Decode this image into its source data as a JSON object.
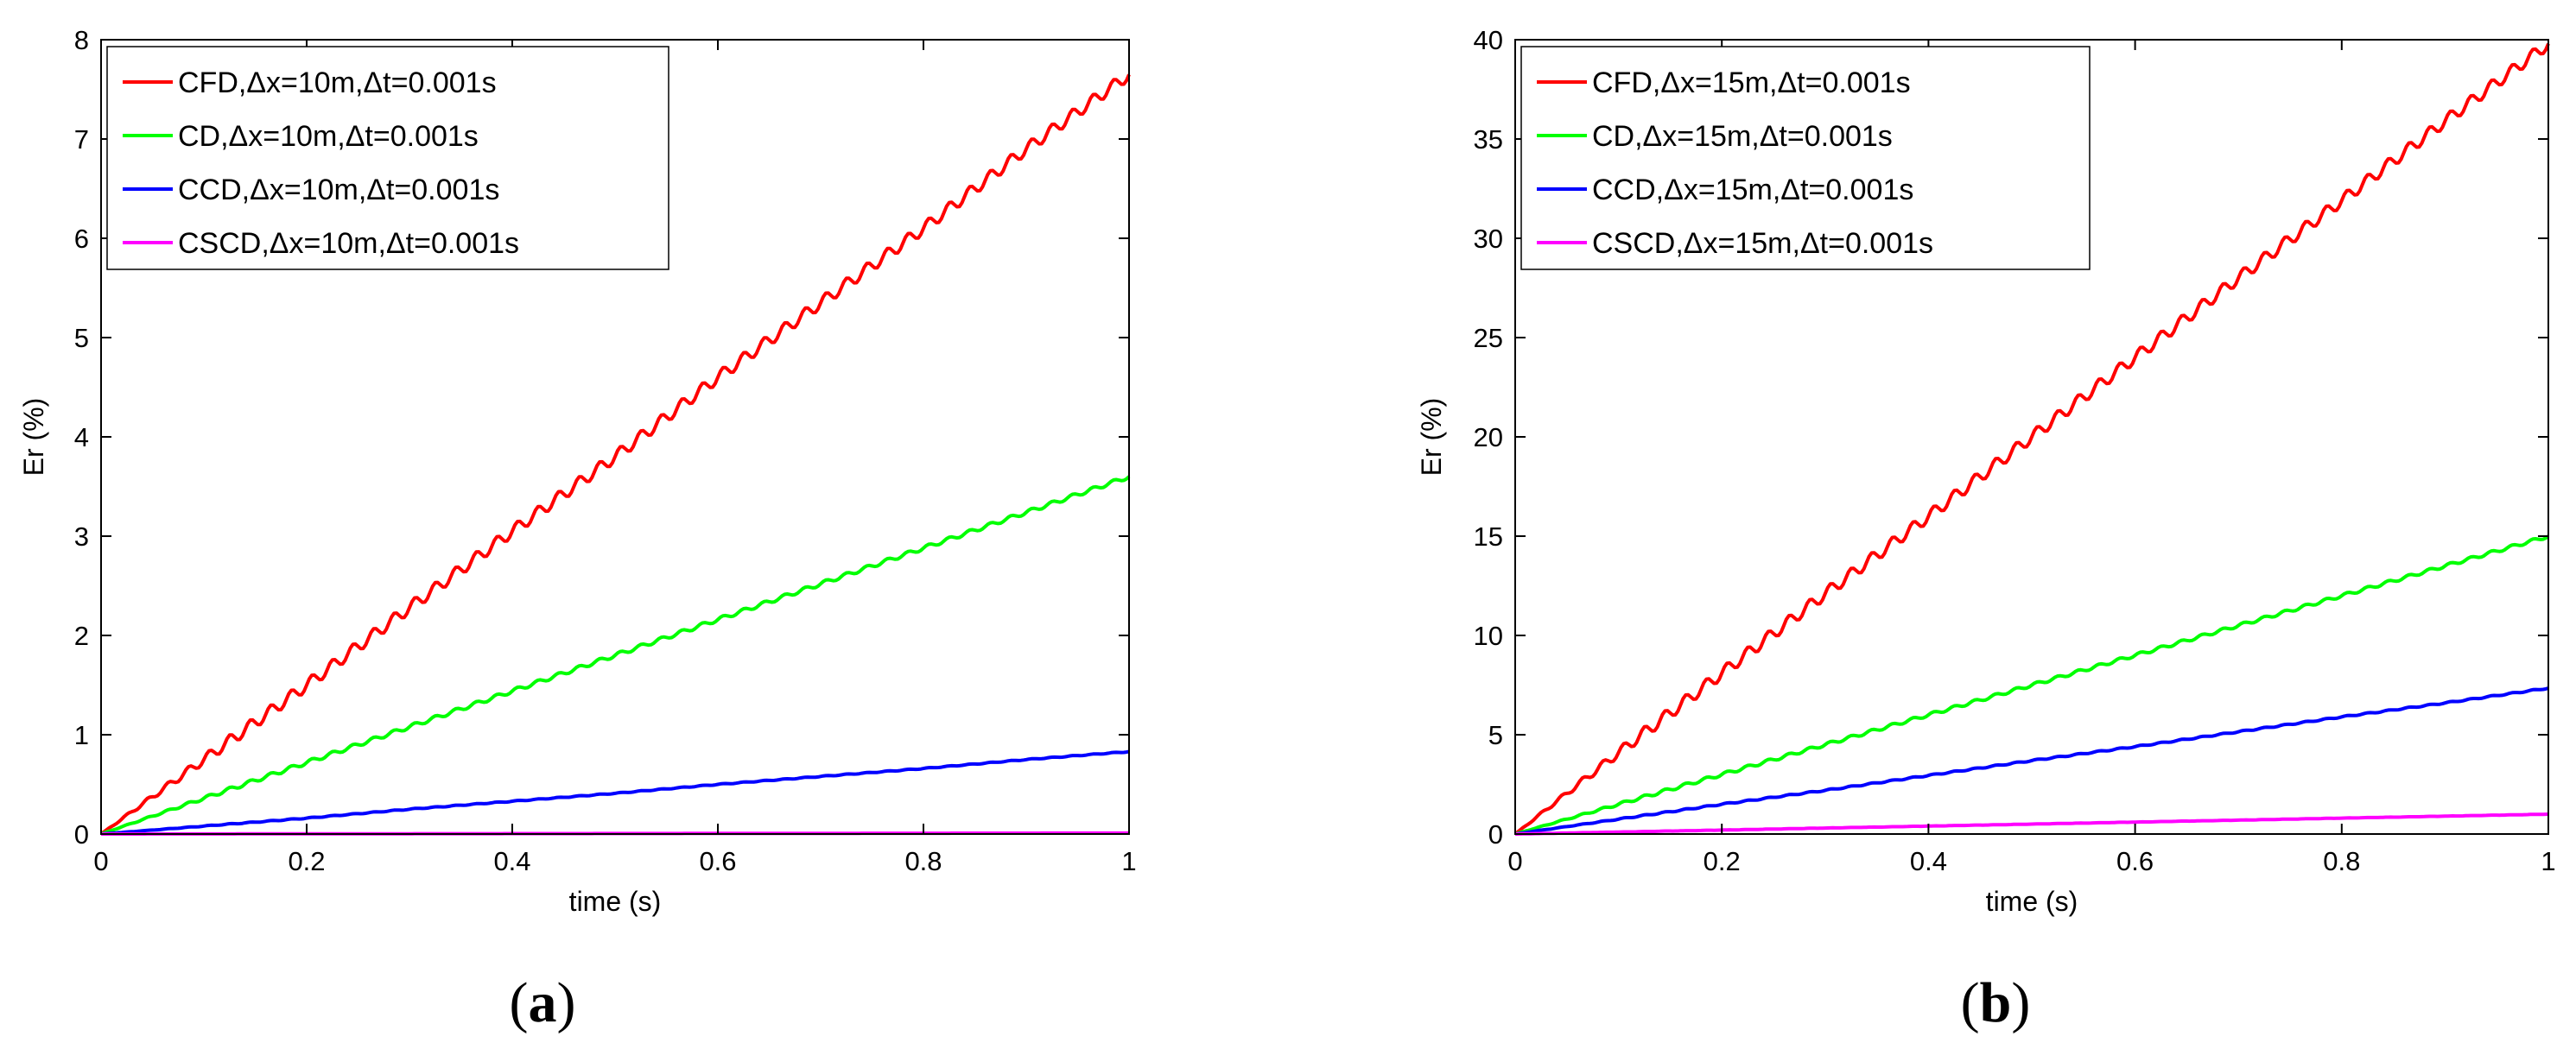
{
  "chart_data": [
    {
      "type": "line",
      "caption": "a",
      "xlabel": "time (s)",
      "ylabel": "Er (%)",
      "xlim": [
        0,
        1
      ],
      "ylim": [
        0,
        8
      ],
      "xticks": [
        0,
        0.2,
        0.4,
        0.6,
        0.8,
        1
      ],
      "xtick_labels": [
        "0",
        "0.2",
        "0.4",
        "0.6",
        "0.8",
        "1"
      ],
      "yticks": [
        0,
        1,
        2,
        3,
        4,
        5,
        6,
        7,
        8
      ],
      "ytick_labels": [
        "0",
        "1",
        "2",
        "3",
        "4",
        "5",
        "6",
        "7",
        "8"
      ],
      "legend_position": "top-left",
      "series": [
        {
          "name": "CFD,Δx=10m,Δt=0.001s",
          "color": "#ff0000",
          "x": [
            0,
            0.1,
            0.2,
            0.3,
            0.4,
            0.5,
            0.6,
            0.7,
            0.8,
            0.9,
            1
          ],
          "values": [
            0,
            0.75,
            1.5,
            2.28,
            3.05,
            3.8,
            4.6,
            5.35,
            6.1,
            6.9,
            7.65
          ],
          "wiggle": 0.06
        },
        {
          "name": "CD,Δx=10m,Δt=0.001s",
          "color": "#00ff00",
          "x": [
            0,
            0.1,
            0.2,
            0.3,
            0.4,
            0.5,
            0.6,
            0.7,
            0.8,
            0.9,
            1
          ],
          "values": [
            0,
            0.36,
            0.72,
            1.08,
            1.44,
            1.8,
            2.16,
            2.52,
            2.88,
            3.24,
            3.6
          ],
          "wiggle": 0.02
        },
        {
          "name": "CCD,Δx=10m,Δt=0.001s",
          "color": "#0000ff",
          "x": [
            0,
            0.1,
            0.2,
            0.3,
            0.4,
            0.5,
            0.6,
            0.7,
            0.8,
            0.9,
            1
          ],
          "values": [
            0,
            0.08,
            0.16,
            0.25,
            0.33,
            0.41,
            0.5,
            0.58,
            0.66,
            0.75,
            0.83
          ],
          "wiggle": 0.004
        },
        {
          "name": "CSCD,Δx=10m,Δt=0.001s",
          "color": "#ff00ff",
          "x": [
            0,
            0.1,
            0.2,
            0.3,
            0.4,
            0.5,
            0.6,
            0.7,
            0.8,
            0.9,
            1
          ],
          "values": [
            0,
            0.001,
            0.002,
            0.003,
            0.004,
            0.005,
            0.006,
            0.007,
            0.008,
            0.009,
            0.01
          ],
          "wiggle": 0
        }
      ]
    },
    {
      "type": "line",
      "caption": "b",
      "xlabel": "time (s)",
      "ylabel": "Er (%)",
      "xlim": [
        0,
        1
      ],
      "ylim": [
        0,
        40
      ],
      "xticks": [
        0,
        0.2,
        0.4,
        0.6,
        0.8,
        1
      ],
      "xtick_labels": [
        "0",
        "0.2",
        "0.4",
        "0.6",
        "0.8",
        "1"
      ],
      "yticks": [
        0,
        5,
        10,
        15,
        20,
        25,
        30,
        35,
        40
      ],
      "ytick_labels": [
        "0",
        "5",
        "10",
        "15",
        "20",
        "25",
        "30",
        "35",
        "40"
      ],
      "legend_position": "top-left",
      "series": [
        {
          "name": "CFD,Δx=15m,Δt=0.001s",
          "color": "#ff0000",
          "x": [
            0,
            0.1,
            0.2,
            0.3,
            0.4,
            0.5,
            0.6,
            0.7,
            0.8,
            0.9,
            1
          ],
          "values": [
            0,
            4.1,
            8.1,
            12.1,
            16.0,
            20.0,
            24.0,
            28.0,
            31.9,
            35.9,
            39.8
          ],
          "wiggle": 0.3
        },
        {
          "name": "CD,Δx=15m,Δt=0.001s",
          "color": "#00ff00",
          "x": [
            0,
            0.1,
            0.2,
            0.3,
            0.4,
            0.5,
            0.6,
            0.7,
            0.8,
            0.9,
            1
          ],
          "values": [
            0,
            1.5,
            3.0,
            4.5,
            6.0,
            7.5,
            9.0,
            10.5,
            12.0,
            13.5,
            15.0
          ],
          "wiggle": 0.08
        },
        {
          "name": "CCD,Δx=15m,Δt=0.001s",
          "color": "#0000ff",
          "x": [
            0,
            0.1,
            0.2,
            0.3,
            0.4,
            0.5,
            0.6,
            0.7,
            0.8,
            0.9,
            1
          ],
          "values": [
            0,
            0.75,
            1.5,
            2.2,
            2.95,
            3.7,
            4.4,
            5.15,
            5.9,
            6.6,
            7.35
          ],
          "wiggle": 0.03
        },
        {
          "name": "CSCD,Δx=15m,Δt=0.001s",
          "color": "#ff00ff",
          "x": [
            0,
            0.1,
            0.2,
            0.3,
            0.4,
            0.5,
            0.6,
            0.7,
            0.8,
            0.9,
            1
          ],
          "values": [
            0,
            0.1,
            0.2,
            0.3,
            0.4,
            0.5,
            0.6,
            0.7,
            0.8,
            0.9,
            1.0
          ],
          "wiggle": 0.005
        }
      ]
    }
  ]
}
